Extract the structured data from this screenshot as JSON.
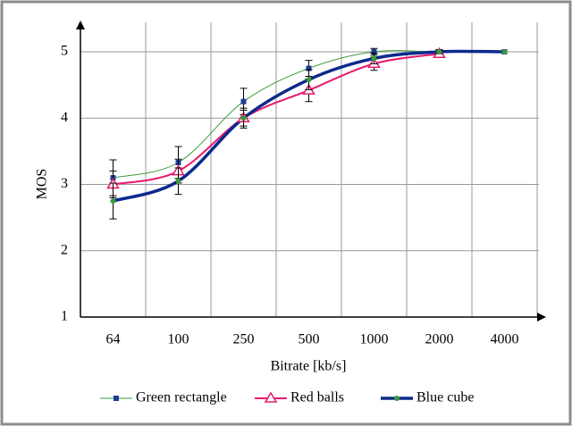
{
  "chart_data": {
    "type": "line",
    "x_label": "Bitrate [kb/s]",
    "y_label": "MOS",
    "categories": [
      "64",
      "100",
      "250",
      "500",
      "1000",
      "2000",
      "4000"
    ],
    "ylim": [
      1,
      5
    ],
    "yticks": [
      1,
      2,
      3,
      4,
      5
    ],
    "grid": true,
    "legend": "bottom",
    "series": [
      {
        "name": "Green rectangle",
        "color": "#3a9a3a",
        "marker_color": "#1f3c99",
        "marker": "square",
        "line_width": 1,
        "values": [
          3.1,
          3.33,
          4.25,
          4.75,
          5.0,
          5.0,
          5.0
        ],
        "errors": [
          0.27,
          0.24,
          0.2,
          0.12,
          0.05,
          0.03,
          0
        ]
      },
      {
        "name": "Red balls",
        "color": "#e8196e",
        "marker_color": "#e8196e",
        "marker": "triangle",
        "line_width": 2,
        "values": [
          3.0,
          3.2,
          4.0,
          4.42,
          4.82,
          4.97,
          null
        ],
        "errors": [
          0.2,
          0.18,
          0.15,
          0.17,
          0.1,
          0.03,
          null
        ]
      },
      {
        "name": "Blue cube",
        "color": "#0c2a8c",
        "marker_color": "#3a9a3a",
        "marker": "circle",
        "line_width": 3.5,
        "values": [
          2.75,
          3.05,
          4.0,
          4.58,
          4.9,
          5.0,
          5.0
        ],
        "errors": [
          0.27,
          0.2,
          0.12,
          0.15,
          0.08,
          0.03,
          0
        ]
      }
    ]
  }
}
